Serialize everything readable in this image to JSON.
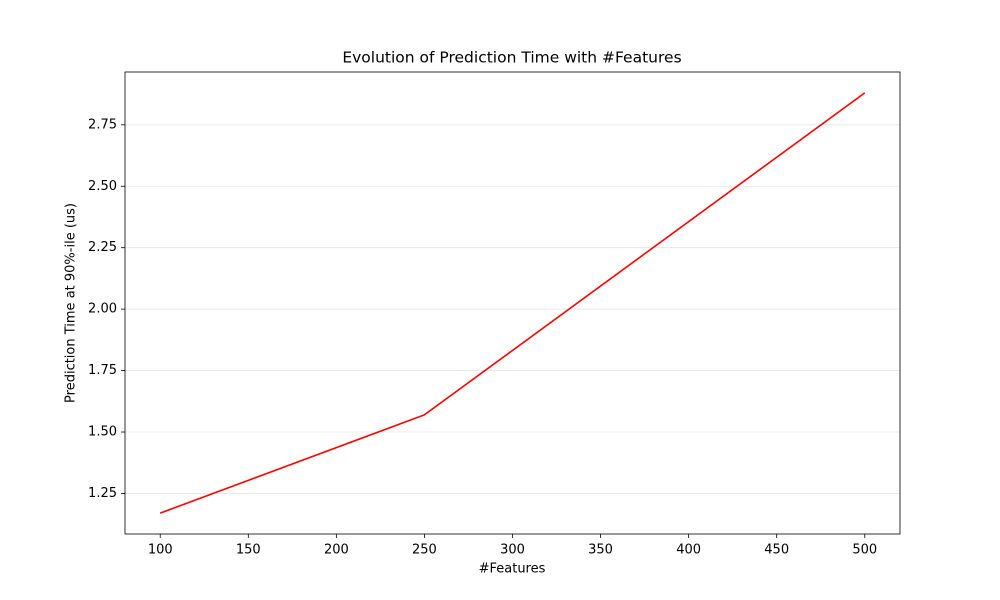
{
  "chart_data": {
    "type": "line",
    "title": "Evolution of Prediction Time with #Features",
    "xlabel": "#Features",
    "ylabel": "Prediction Time at 90%-ile (us)",
    "x": [
      100,
      250,
      500
    ],
    "values": [
      1.17,
      1.57,
      2.88
    ],
    "color": "#ff0000",
    "xlim": [
      80,
      520
    ],
    "xticks": [
      100,
      150,
      200,
      250,
      300,
      350,
      400,
      450,
      500
    ],
    "ylim": [
      1.085,
      2.965
    ],
    "yticks": [
      1.25,
      {
        "value": 1.5,
        "label": "1.50"
      },
      1.75,
      {
        "value": 2.0,
        "label": "2.00"
      },
      2.25,
      {
        "value": 2.5,
        "label": "2.50"
      },
      2.75
    ],
    "grid": true
  }
}
